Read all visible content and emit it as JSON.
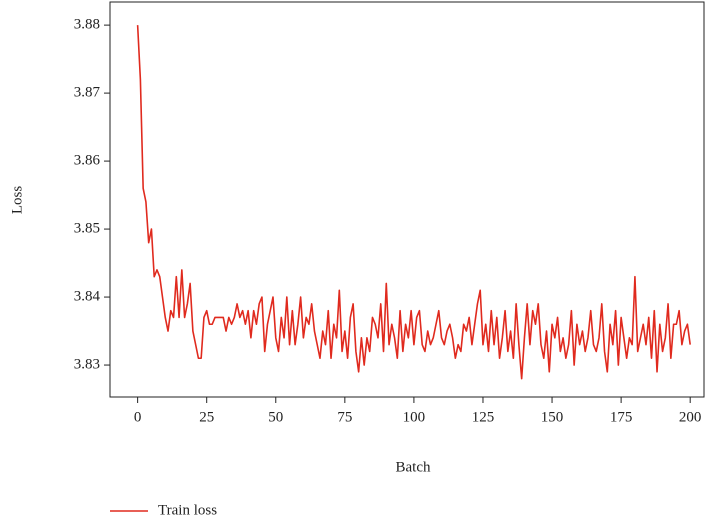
{
  "chart_data": {
    "type": "line",
    "xlabel": "Batch",
    "ylabel": "Loss",
    "xlim": [
      -10,
      205
    ],
    "xticks": [
      0,
      25,
      50,
      75,
      100,
      125,
      150,
      175,
      200
    ],
    "ylim": [
      3.8253,
      3.8834
    ],
    "yticks": [
      3.83,
      3.84,
      3.85,
      3.86,
      3.87,
      3.88
    ],
    "legend": "bottom-left",
    "x": [
      0,
      1,
      2,
      3,
      4,
      5,
      6,
      7,
      8,
      9,
      10,
      11,
      12,
      13,
      14,
      15,
      16,
      17,
      18,
      19,
      20,
      21,
      22,
      23,
      24,
      25,
      26,
      27,
      28,
      29,
      30,
      31,
      32,
      33,
      34,
      35,
      36,
      37,
      38,
      39,
      40,
      41,
      42,
      43,
      44,
      45,
      46,
      47,
      48,
      49,
      50,
      51,
      52,
      53,
      54,
      55,
      56,
      57,
      58,
      59,
      60,
      61,
      62,
      63,
      64,
      65,
      66,
      67,
      68,
      69,
      70,
      71,
      72,
      73,
      74,
      75,
      76,
      77,
      78,
      79,
      80,
      81,
      82,
      83,
      84,
      85,
      86,
      87,
      88,
      89,
      90,
      91,
      92,
      93,
      94,
      95,
      96,
      97,
      98,
      99,
      100,
      101,
      102,
      103,
      104,
      105,
      106,
      107,
      108,
      109,
      110,
      111,
      112,
      113,
      114,
      115,
      116,
      117,
      118,
      119,
      120,
      121,
      122,
      123,
      124,
      125,
      126,
      127,
      128,
      129,
      130,
      131,
      132,
      133,
      134,
      135,
      136,
      137,
      138,
      139,
      140,
      141,
      142,
      143,
      144,
      145,
      146,
      147,
      148,
      149,
      150,
      151,
      152,
      153,
      154,
      155,
      156,
      157,
      158,
      159,
      160,
      161,
      162,
      163,
      164,
      165,
      166,
      167,
      168,
      169,
      170,
      171,
      172,
      173,
      174,
      175,
      176,
      177,
      178,
      179,
      180,
      181,
      182,
      183,
      184,
      185,
      186,
      187,
      188,
      189,
      190,
      191,
      192,
      193,
      194,
      195,
      196,
      197,
      198,
      199,
      200
    ],
    "series": [
      {
        "name": "Train loss",
        "color": "#e02a1e",
        "values": [
          3.88,
          3.872,
          3.856,
          3.854,
          3.848,
          3.85,
          3.843,
          3.844,
          3.843,
          3.84,
          3.837,
          3.835,
          3.838,
          3.837,
          3.843,
          3.837,
          3.844,
          3.837,
          3.839,
          3.842,
          3.835,
          3.833,
          3.831,
          3.831,
          3.837,
          3.838,
          3.836,
          3.836,
          3.837,
          3.837,
          3.837,
          3.837,
          3.835,
          3.837,
          3.836,
          3.837,
          3.839,
          3.837,
          3.838,
          3.836,
          3.838,
          3.834,
          3.838,
          3.836,
          3.839,
          3.84,
          3.832,
          3.836,
          3.838,
          3.84,
          3.834,
          3.832,
          3.837,
          3.834,
          3.84,
          3.833,
          3.838,
          3.833,
          3.836,
          3.84,
          3.834,
          3.837,
          3.836,
          3.839,
          3.835,
          3.833,
          3.831,
          3.835,
          3.833,
          3.838,
          3.831,
          3.836,
          3.834,
          3.841,
          3.832,
          3.835,
          3.831,
          3.837,
          3.839,
          3.832,
          3.829,
          3.834,
          3.83,
          3.834,
          3.832,
          3.837,
          3.836,
          3.834,
          3.839,
          3.832,
          3.842,
          3.833,
          3.836,
          3.834,
          3.831,
          3.838,
          3.832,
          3.836,
          3.834,
          3.838,
          3.833,
          3.837,
          3.838,
          3.833,
          3.832,
          3.835,
          3.833,
          3.834,
          3.836,
          3.838,
          3.834,
          3.833,
          3.835,
          3.836,
          3.834,
          3.831,
          3.833,
          3.832,
          3.836,
          3.835,
          3.837,
          3.833,
          3.836,
          3.839,
          3.841,
          3.833,
          3.836,
          3.832,
          3.838,
          3.833,
          3.837,
          3.831,
          3.834,
          3.838,
          3.832,
          3.835,
          3.831,
          3.839,
          3.833,
          3.828,
          3.834,
          3.839,
          3.833,
          3.838,
          3.836,
          3.839,
          3.833,
          3.831,
          3.835,
          3.829,
          3.836,
          3.834,
          3.837,
          3.832,
          3.834,
          3.831,
          3.833,
          3.838,
          3.83,
          3.836,
          3.833,
          3.835,
          3.832,
          3.834,
          3.838,
          3.833,
          3.832,
          3.834,
          3.839,
          3.832,
          3.829,
          3.836,
          3.833,
          3.838,
          3.83,
          3.837,
          3.834,
          3.831,
          3.834,
          3.833,
          3.843,
          3.832,
          3.834,
          3.836,
          3.833,
          3.837,
          3.831,
          3.838,
          3.829,
          3.836,
          3.832,
          3.834,
          3.839,
          3.831,
          3.836,
          3.836,
          3.838,
          3.833,
          3.835,
          3.836,
          3.833
        ]
      }
    ]
  }
}
